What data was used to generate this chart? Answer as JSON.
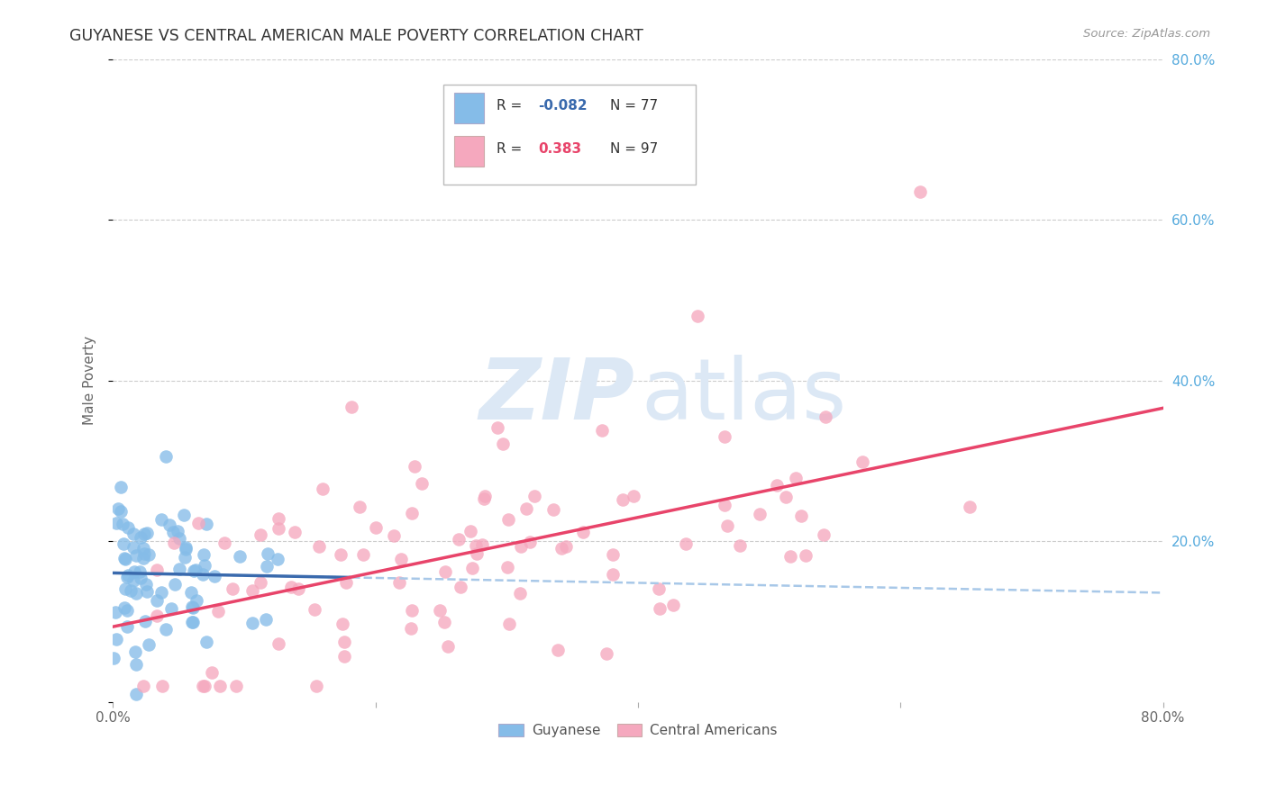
{
  "title": "GUYANESE VS CENTRAL AMERICAN MALE POVERTY CORRELATION CHART",
  "source": "Source: ZipAtlas.com",
  "ylabel": "Male Poverty",
  "xlim": [
    0.0,
    0.8
  ],
  "ylim": [
    0.0,
    0.8
  ],
  "guyanese_R": -0.082,
  "guyanese_N": 77,
  "central_american_R": 0.383,
  "central_american_N": 97,
  "blue_color": "#85bce8",
  "pink_color": "#f5a8be",
  "blue_line_solid_color": "#3a6aad",
  "blue_line_dashed_color": "#a8c8e8",
  "pink_line_color": "#e8446a",
  "background_color": "#ffffff",
  "watermark_color": "#dce8f5",
  "grid_color": "#cccccc",
  "title_color": "#333333",
  "right_axis_tick_color": "#55aadd",
  "right_ytick_labels": [
    "20.0%",
    "40.0%",
    "60.0%",
    "80.0%"
  ],
  "right_ytick_positions": [
    0.2,
    0.4,
    0.6,
    0.8
  ],
  "xtick_positions": [
    0.0,
    0.2,
    0.4,
    0.6,
    0.8
  ],
  "xtick_labels": [
    "0.0%",
    "",
    "",
    "",
    "80.0%"
  ]
}
